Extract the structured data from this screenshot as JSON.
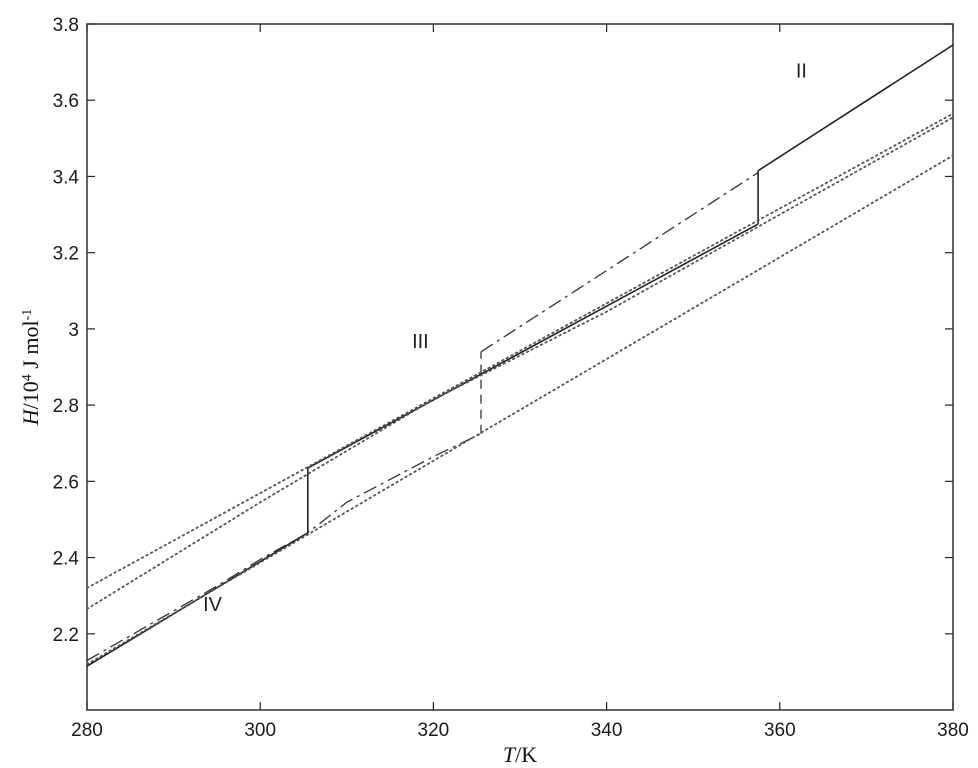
{
  "chart_data": {
    "type": "line",
    "xlabel": "T/K",
    "ylabel": "H/10⁴ J mol⁻¹",
    "xlim": [
      280,
      380
    ],
    "ylim": [
      2.0,
      3.8
    ],
    "xticks": [
      280,
      300,
      320,
      340,
      360,
      380
    ],
    "xtick_labels": [
      "280",
      "300",
      "320",
      "340",
      "360",
      "380"
    ],
    "yticks": [
      2.2,
      2.4,
      2.6,
      2.8,
      3.0,
      3.2,
      3.4,
      3.6,
      3.8
    ],
    "ytick_labels": [
      "2.2",
      "2.4",
      "2.6",
      "2.8",
      "3",
      "3.2",
      "3.4",
      "3.6",
      "3.8"
    ],
    "grid": false,
    "annotations": [
      {
        "text": "II",
        "x": 362.5,
        "y": 3.66
      },
      {
        "text": "III",
        "x": 318.5,
        "y": 2.95
      },
      {
        "text": "IV",
        "x": 294.5,
        "y": 2.26
      }
    ],
    "series": [
      {
        "style": "solid",
        "color": "#222222",
        "segments": [
          {
            "x": [
              280,
              305.5
            ],
            "y": [
              2.115,
              2.465
            ]
          },
          {
            "x": [
              305.5,
              305.5
            ],
            "y": [
              2.465,
              2.635
            ]
          },
          {
            "x": [
              305.5,
              357.5
            ],
            "y": [
              2.635,
              3.275
            ]
          },
          {
            "x": [
              357.5,
              357.5
            ],
            "y": [
              3.275,
              3.415
            ]
          },
          {
            "x": [
              357.5,
              380
            ],
            "y": [
              3.415,
              3.745
            ]
          }
        ]
      },
      {
        "style": "dashdot",
        "color": "#333333",
        "segments": [
          {
            "x": [
              280,
              285,
              290,
              295,
              300,
              305.5,
              310,
              315,
              320,
              325.5
            ],
            "y": [
              2.13,
              2.195,
              2.26,
              2.325,
              2.395,
              2.465,
              2.545,
              2.605,
              2.665,
              2.725
            ]
          },
          {
            "x": [
              325.5,
              357.5
            ],
            "y": [
              2.94,
              3.41
            ]
          }
        ]
      },
      {
        "style": "dashed",
        "color": "#333333",
        "segments": [
          {
            "x": [
              325.5,
              325.5
            ],
            "y": [
              2.725,
              2.94
            ]
          }
        ]
      },
      {
        "style": "dotted",
        "color": "#555555",
        "segments": [
          {
            "x": [
              280,
              380
            ],
            "y": [
              2.32,
              3.565
            ]
          }
        ]
      },
      {
        "style": "dotted",
        "color": "#555555",
        "segments": [
          {
            "x": [
              280,
              300,
              320,
              340,
              380
            ],
            "y": [
              2.265,
              2.545,
              2.815,
              3.045,
              3.555
            ]
          }
        ]
      },
      {
        "style": "dotted",
        "color": "#555555",
        "segments": [
          {
            "x": [
              280,
              380
            ],
            "y": [
              2.12,
              3.455
            ]
          }
        ]
      }
    ]
  }
}
